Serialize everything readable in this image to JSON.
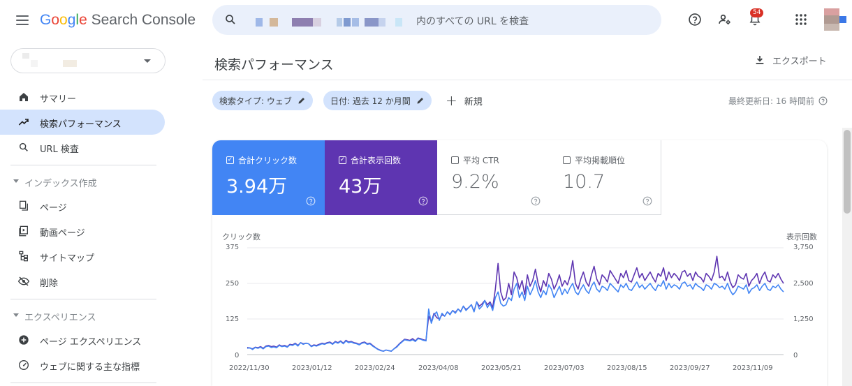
{
  "header": {
    "logo_google": "Google",
    "logo_product": "Search Console",
    "search_placeholder": "内のすべての URL を検査",
    "notification_count": "54"
  },
  "sidebar": {
    "items": [
      {
        "label": "サマリー",
        "icon": "home-icon",
        "active": false
      },
      {
        "label": "検索パフォーマンス",
        "icon": "trending-up-icon",
        "active": true
      },
      {
        "label": "URL 検査",
        "icon": "search-icon",
        "active": false
      }
    ],
    "section_index": "インデックス作成",
    "index_items": [
      {
        "label": "ページ",
        "icon": "pages-icon"
      },
      {
        "label": "動画ページ",
        "icon": "video-pages-icon"
      },
      {
        "label": "サイトマップ",
        "icon": "sitemap-icon"
      },
      {
        "label": "削除",
        "icon": "removals-icon"
      }
    ],
    "section_experience": "エクスペリエンス",
    "experience_items": [
      {
        "label": "ページ エクスペリエンス",
        "icon": "page-experience-icon"
      },
      {
        "label": "ウェブに関する主な指標",
        "icon": "core-web-vitals-icon"
      }
    ]
  },
  "main": {
    "title": "検索パフォーマンス",
    "export_label": "エクスポート",
    "filters": {
      "search_type": "検索タイプ: ウェブ",
      "date": "日付: 過去 12 か月間",
      "new_label": "新規"
    },
    "last_updated": "最終更新日: 16 時間前",
    "metrics": [
      {
        "label": "合計クリック数",
        "value": "3.94万",
        "selected": true
      },
      {
        "label": "合計表示回数",
        "value": "43万",
        "selected": true
      },
      {
        "label": "平均 CTR",
        "value": "9.2%",
        "selected": false
      },
      {
        "label": "平均掲載順位",
        "value": "10.7",
        "selected": false
      }
    ]
  },
  "colors": {
    "clicks": "#4285f4",
    "impressions": "#5e35b1",
    "accent_bg": "#d3e3fd"
  },
  "chart_data": {
    "type": "line",
    "ylabel_left": "クリック数",
    "ylabel_right": "表示回数",
    "yticks_left": [
      "375",
      "250",
      "125",
      "0"
    ],
    "yticks_right": [
      "3,750",
      "2,500",
      "1,250",
      "0"
    ],
    "ylim_left": [
      0,
      375
    ],
    "ylim_right": [
      0,
      3750
    ],
    "x_labels": [
      "2022/11/30",
      "2023/01/12",
      "2023/02/24",
      "2023/04/08",
      "2023/05/21",
      "2023/07/03",
      "2023/08/15",
      "2023/09/27",
      "2023/11/09"
    ],
    "grid": true,
    "series": [
      {
        "name": "クリック数",
        "axis": "left",
        "values": [
          22,
          24,
          18,
          25,
          22,
          26,
          20,
          28,
          30,
          25,
          27,
          24,
          32,
          28,
          30,
          26,
          34,
          32,
          38,
          30,
          42,
          36,
          40,
          38,
          28,
          32,
          30,
          34,
          38,
          36,
          40,
          42,
          36,
          44,
          40,
          46,
          38,
          48,
          42,
          44,
          40,
          38,
          34,
          40,
          42,
          36,
          38,
          30,
          24,
          18,
          14,
          12,
          16,
          14,
          12,
          20,
          26,
          36,
          44,
          52,
          50,
          48,
          52,
          46,
          56,
          54,
          50,
          48,
          160,
          110,
          140,
          150,
          120,
          145,
          135,
          150,
          140,
          155,
          145,
          160,
          150,
          170,
          155,
          165,
          175,
          150,
          185,
          160,
          170,
          190,
          165,
          180,
          155,
          200,
          220,
          180,
          170,
          175,
          200,
          190,
          230,
          250,
          200,
          220,
          190,
          240,
          210,
          230,
          260,
          220,
          200,
          225,
          210,
          245,
          230,
          200,
          220,
          240,
          210,
          230,
          215,
          235,
          250,
          220,
          210,
          230,
          245,
          225,
          215,
          240,
          255,
          230,
          220,
          240,
          235,
          225,
          250,
          240,
          230,
          220,
          245,
          235,
          250,
          230,
          225,
          240,
          255,
          235,
          245,
          230,
          240,
          250,
          235,
          225,
          245,
          240,
          260,
          230,
          250,
          235,
          245,
          240,
          230,
          250,
          255,
          240,
          245,
          230,
          250,
          240,
          235,
          225,
          245,
          240,
          230,
          250,
          245,
          235,
          240,
          230,
          250,
          225,
          210,
          220,
          240,
          235,
          230,
          245,
          215,
          230,
          235,
          245,
          225,
          240,
          250,
          230,
          225,
          240,
          235,
          245,
          230,
          220
        ]
      },
      {
        "name": "表示回数",
        "axis": "right",
        "values": [
          250,
          230,
          200,
          260,
          240,
          280,
          220,
          300,
          320,
          280,
          300,
          260,
          340,
          300,
          320,
          280,
          360,
          340,
          400,
          320,
          420,
          380,
          400,
          380,
          300,
          340,
          320,
          360,
          400,
          380,
          420,
          440,
          380,
          460,
          420,
          480,
          400,
          500,
          440,
          460,
          420,
          400,
          360,
          420,
          440,
          380,
          400,
          320,
          250,
          190,
          150,
          120,
          160,
          140,
          120,
          200,
          280,
          380,
          460,
          540,
          520,
          500,
          560,
          480,
          580,
          560,
          520,
          500,
          1350,
          1150,
          1450,
          1300,
          1250,
          1400,
          1350,
          1500,
          1420,
          1550,
          1480,
          1600,
          1520,
          1700,
          1580,
          1650,
          1750,
          1520,
          1850,
          1700,
          1780,
          1900,
          1750,
          1850,
          1650,
          2300,
          3200,
          2200,
          1900,
          2000,
          2500,
          2100,
          2900,
          2700,
          2300,
          2600,
          2100,
          2800,
          2400,
          2600,
          3000,
          2500,
          2200,
          2600,
          2400,
          2850,
          2650,
          2300,
          2500,
          2800,
          2400,
          2600,
          2450,
          2750,
          3300,
          2500,
          2300,
          2650,
          2900,
          2550,
          2400,
          2800,
          3100,
          2650,
          2450,
          2800,
          2700,
          2550,
          2950,
          2800,
          2650,
          2500,
          2850,
          2700,
          2950,
          2600,
          2550,
          2800,
          3050,
          2700,
          2850,
          2600,
          2750,
          2900,
          2700,
          2550,
          2850,
          2750,
          3050,
          2600,
          2900,
          2700,
          2850,
          2750,
          2600,
          2900,
          2950,
          2750,
          2850,
          2600,
          2900,
          2750,
          2700,
          2550,
          2850,
          2750,
          2600,
          2900,
          3450,
          2700,
          2750,
          2600,
          2900,
          2550,
          2350,
          2450,
          2800,
          2700,
          2650,
          2850,
          2400,
          2600,
          2700,
          2850,
          2500,
          2750,
          2900,
          2600,
          2550,
          2800,
          2700,
          2850,
          2650,
          2500
        ]
      }
    ]
  }
}
